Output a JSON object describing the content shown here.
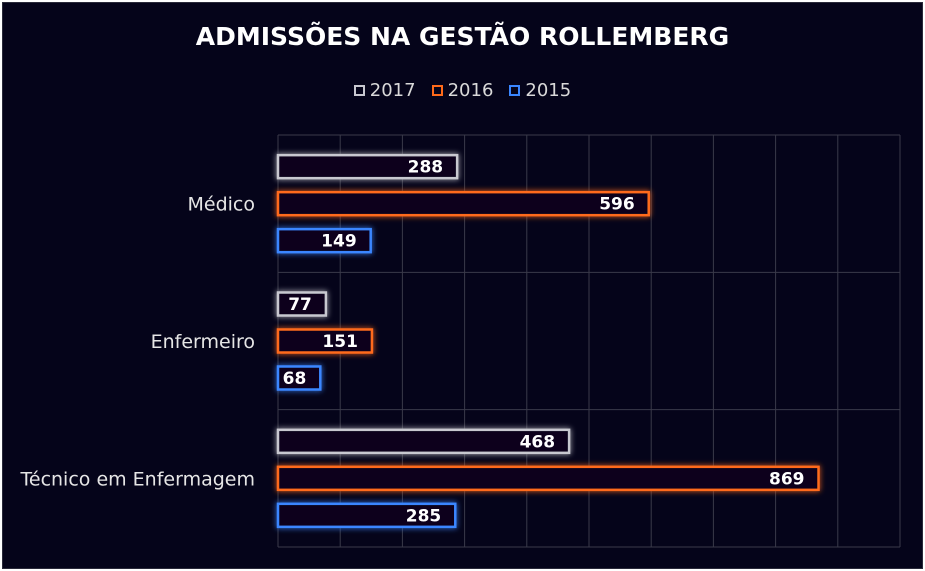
{
  "chart_data": {
    "type": "bar",
    "orientation": "horizontal",
    "title": "ADMISSÕES NA GESTÃO ROLLEMBERG",
    "categories": [
      "Médico",
      "Enfermeiro",
      "Técnico em Enfermagem"
    ],
    "series": [
      {
        "name": "2017",
        "color": "#c8c8d0",
        "values": [
          288,
          77,
          468
        ]
      },
      {
        "name": "2016",
        "color": "#ff6a1a",
        "values": [
          596,
          151,
          869
        ]
      },
      {
        "name": "2015",
        "color": "#3a86ff",
        "values": [
          149,
          68,
          285
        ]
      }
    ],
    "xlim": [
      0,
      1000
    ],
    "grid": true,
    "legend_position": "top",
    "xlabel": "",
    "ylabel": ""
  }
}
